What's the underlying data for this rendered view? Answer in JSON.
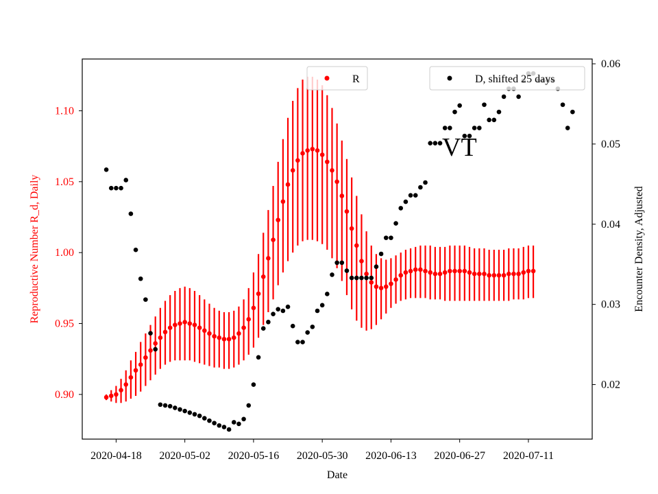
{
  "chart_data": {
    "type": "scatter",
    "xlabel": "Date",
    "ylabel_left": "Reproductive Number R_d, Daily",
    "ylabel_right": "Encounter Density, Adjusted",
    "annotation": "VT",
    "x_tick_labels": [
      "2020-04-18",
      "2020-05-02",
      "2020-05-16",
      "2020-05-30",
      "2020-06-13",
      "2020-06-27",
      "2020-07-11"
    ],
    "x_tick_days": [
      0,
      14,
      28,
      42,
      56,
      70,
      84
    ],
    "xlim_days": [
      -6.9,
      97
    ],
    "left_ylim": [
      0.8685,
      1.1365
    ],
    "left_ticks": [
      "0.90",
      "0.95",
      "1.00",
      "1.05",
      "1.10"
    ],
    "right_ylim": [
      0.0132,
      0.0606
    ],
    "right_ticks": [
      "0.02",
      "0.03",
      "0.04",
      "0.05",
      "0.06"
    ],
    "colors": {
      "R": "#ff0000",
      "D": "#000000",
      "left_axis": "#ff0000",
      "right_axis": "#000000"
    },
    "series": [
      {
        "name": "R",
        "axis": "left",
        "color": "#ff0000",
        "start_day": -2,
        "values": [
          0.898,
          0.899,
          0.9,
          0.903,
          0.907,
          0.912,
          0.917,
          0.921,
          0.926,
          0.931,
          0.936,
          0.94,
          0.944,
          0.947,
          0.949,
          0.95,
          0.951,
          0.95,
          0.949,
          0.947,
          0.945,
          0.943,
          0.941,
          0.94,
          0.939,
          0.939,
          0.94,
          0.943,
          0.947,
          0.953,
          0.961,
          0.971,
          0.983,
          0.996,
          1.009,
          1.023,
          1.036,
          1.048,
          1.058,
          1.065,
          1.07,
          1.072,
          1.073,
          1.072,
          1.069,
          1.064,
          1.058,
          1.05,
          1.04,
          1.029,
          1.017,
          1.005,
          0.994,
          0.985,
          0.979,
          0.976,
          0.975,
          0.976,
          0.978,
          0.981,
          0.984,
          0.986,
          0.987,
          0.988,
          0.988,
          0.987,
          0.986,
          0.985,
          0.985,
          0.986,
          0.987,
          0.987,
          0.987,
          0.987,
          0.986,
          0.985,
          0.985,
          0.985,
          0.984,
          0.984,
          0.984,
          0.984,
          0.985,
          0.985,
          0.985,
          0.986,
          0.987,
          0.987
        ],
        "err_lower": [
          0.896,
          0.895,
          0.894,
          0.894,
          0.895,
          0.897,
          0.899,
          0.902,
          0.906,
          0.91,
          0.914,
          0.918,
          0.921,
          0.923,
          0.924,
          0.924,
          0.924,
          0.924,
          0.923,
          0.922,
          0.921,
          0.92,
          0.919,
          0.919,
          0.918,
          0.918,
          0.919,
          0.921,
          0.924,
          0.928,
          0.933,
          0.94,
          0.949,
          0.958,
          0.967,
          0.977,
          0.986,
          0.994,
          1.0,
          1.005,
          1.008,
          1.009,
          1.009,
          1.008,
          1.006,
          1.002,
          0.996,
          0.989,
          0.98,
          0.97,
          0.96,
          0.952,
          0.947,
          0.945,
          0.946,
          0.949,
          0.953,
          0.957,
          0.961,
          0.964,
          0.966,
          0.967,
          0.968,
          0.968,
          0.968,
          0.968,
          0.967,
          0.967,
          0.967,
          0.966,
          0.966,
          0.966,
          0.966,
          0.966,
          0.966,
          0.966,
          0.966,
          0.966,
          0.966,
          0.966,
          0.966,
          0.966,
          0.966,
          0.967,
          0.967,
          0.967,
          0.968,
          0.968
        ],
        "err_upper": [
          0.9,
          0.903,
          0.906,
          0.911,
          0.917,
          0.924,
          0.93,
          0.937,
          0.943,
          0.949,
          0.955,
          0.961,
          0.966,
          0.97,
          0.973,
          0.975,
          0.976,
          0.975,
          0.973,
          0.97,
          0.967,
          0.964,
          0.961,
          0.959,
          0.958,
          0.958,
          0.959,
          0.962,
          0.967,
          0.975,
          0.986,
          0.999,
          1.014,
          1.03,
          1.047,
          1.064,
          1.08,
          1.095,
          1.107,
          1.116,
          1.122,
          1.124,
          1.124,
          1.122,
          1.118,
          1.111,
          1.102,
          1.091,
          1.079,
          1.066,
          1.053,
          1.04,
          1.027,
          1.015,
          1.005,
          0.999,
          0.996,
          0.995,
          0.996,
          0.998,
          1.0,
          1.002,
          1.003,
          1.004,
          1.005,
          1.005,
          1.005,
          1.004,
          1.004,
          1.004,
          1.005,
          1.005,
          1.005,
          1.005,
          1.004,
          1.003,
          1.003,
          1.003,
          1.002,
          1.002,
          1.002,
          1.002,
          1.003,
          1.003,
          1.003,
          1.004,
          1.005,
          1.005
        ]
      },
      {
        "name": "D, shifted 25 days",
        "axis": "right",
        "color": "#000000",
        "points": [
          [
            -2,
            0.0468
          ],
          [
            -1,
            0.0445
          ],
          [
            0,
            0.0445
          ],
          [
            1,
            0.0445
          ],
          [
            2,
            0.0455
          ],
          [
            3,
            0.0413
          ],
          [
            4,
            0.0368
          ],
          [
            5,
            0.0332
          ],
          [
            6,
            0.0306
          ],
          [
            7,
            0.0264
          ],
          [
            8,
            0.0244
          ],
          [
            9,
            0.0175
          ],
          [
            10,
            0.0174
          ],
          [
            11,
            0.0173
          ],
          [
            12,
            0.0171
          ],
          [
            13,
            0.0169
          ],
          [
            14,
            0.0167
          ],
          [
            15,
            0.0165
          ],
          [
            16,
            0.0163
          ],
          [
            17,
            0.0161
          ],
          [
            18,
            0.0158
          ],
          [
            19,
            0.0155
          ],
          [
            20,
            0.0152
          ],
          [
            21,
            0.0149
          ],
          [
            22,
            0.0147
          ],
          [
            23,
            0.0144
          ],
          [
            24,
            0.0153
          ],
          [
            25,
            0.0151
          ],
          [
            26,
            0.0157
          ],
          [
            27,
            0.0174
          ],
          [
            28,
            0.02
          ],
          [
            29,
            0.0234
          ],
          [
            30,
            0.027
          ],
          [
            31,
            0.0278
          ],
          [
            32,
            0.0288
          ],
          [
            33,
            0.0294
          ],
          [
            34,
            0.0292
          ],
          [
            35,
            0.0297
          ],
          [
            36,
            0.0273
          ],
          [
            37,
            0.0253
          ],
          [
            38,
            0.0253
          ],
          [
            39,
            0.0265
          ],
          [
            40,
            0.0272
          ],
          [
            41,
            0.0292
          ],
          [
            42,
            0.0299
          ],
          [
            43,
            0.0313
          ],
          [
            44,
            0.0337
          ],
          [
            45,
            0.0352
          ],
          [
            46,
            0.0352
          ],
          [
            47,
            0.0342
          ],
          [
            48,
            0.0333
          ],
          [
            49,
            0.0333
          ],
          [
            50,
            0.0333
          ],
          [
            51,
            0.0333
          ],
          [
            52,
            0.0333
          ],
          [
            53,
            0.0347
          ],
          [
            54,
            0.0363
          ],
          [
            55,
            0.0383
          ],
          [
            56,
            0.0383
          ],
          [
            57,
            0.0401
          ],
          [
            58,
            0.042
          ],
          [
            59,
            0.0428
          ],
          [
            60,
            0.0436
          ],
          [
            61,
            0.0436
          ],
          [
            62,
            0.0446
          ],
          [
            63,
            0.0452
          ],
          [
            64,
            0.0501
          ],
          [
            65,
            0.0501
          ],
          [
            66,
            0.0501
          ],
          [
            67,
            0.052
          ],
          [
            68,
            0.052
          ],
          [
            69,
            0.054
          ],
          [
            70,
            0.0548
          ],
          [
            71,
            0.051
          ],
          [
            72,
            0.051
          ],
          [
            73,
            0.052
          ],
          [
            74,
            0.052
          ],
          [
            75,
            0.0549
          ],
          [
            76,
            0.053
          ],
          [
            77,
            0.053
          ],
          [
            78,
            0.054
          ],
          [
            79,
            0.0559
          ],
          [
            80,
            0.0569
          ],
          [
            81,
            0.0569
          ],
          [
            82,
            0.0559
          ],
          [
            83,
            0.0579
          ],
          [
            84,
            0.0588
          ],
          [
            85,
            0.0588
          ],
          [
            86,
            0.0579
          ],
          [
            87,
            0.0579
          ],
          [
            88,
            0.0579
          ],
          [
            89,
            0.0579
          ],
          [
            90,
            0.0569
          ],
          [
            91,
            0.0549
          ],
          [
            92,
            0.052
          ],
          [
            93,
            0.054
          ]
        ]
      }
    ],
    "legend": [
      {
        "label": "R",
        "color": "#ff0000",
        "placement": "top-center"
      },
      {
        "label": "D, shifted 25 days",
        "color": "#000000",
        "placement": "top-right"
      }
    ]
  }
}
